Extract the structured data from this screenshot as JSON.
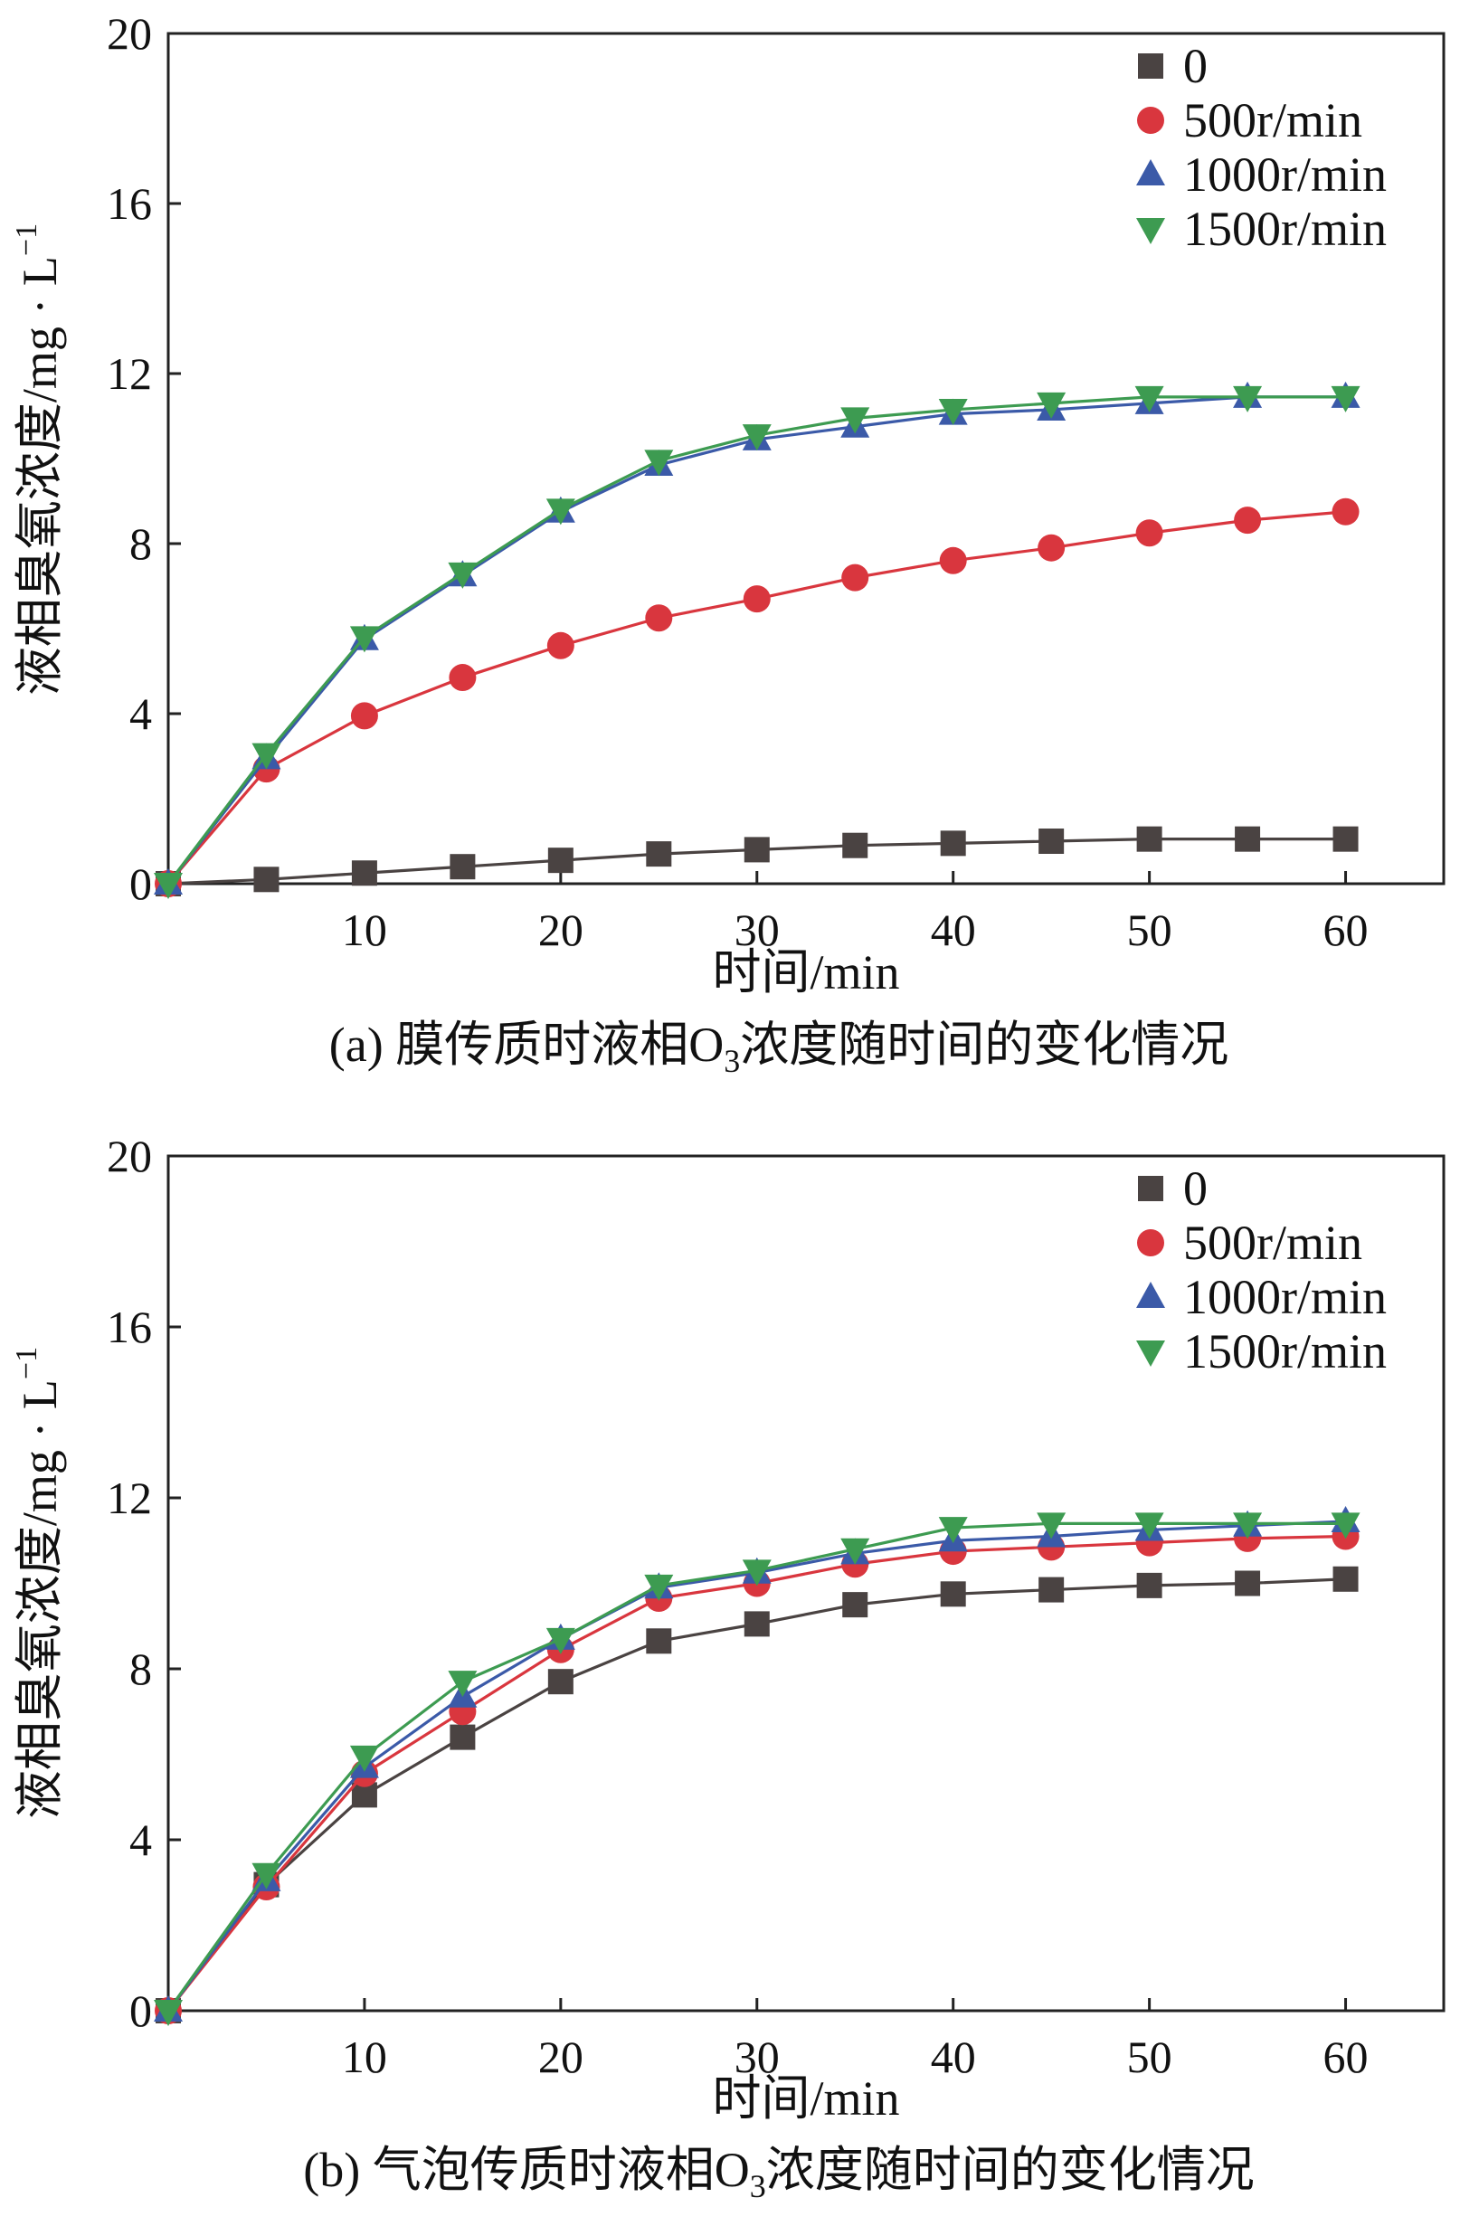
{
  "chart_data": [
    {
      "type": "line",
      "x": [
        0,
        5,
        10,
        15,
        20,
        25,
        30,
        35,
        40,
        45,
        50,
        55,
        60
      ],
      "xticks": [
        10,
        20,
        30,
        40,
        50,
        60
      ],
      "yticks": [
        0,
        4,
        8,
        12,
        16,
        20
      ],
      "xlim": [
        0,
        65
      ],
      "ylim": [
        0,
        20
      ],
      "xlabel": "时间/min",
      "ylabel_main": "液相臭氧浓度/mg · L",
      "ylabel_exp": "−1",
      "caption_prefix": "(a) 膜传质时液相O",
      "caption_sub": "3",
      "caption_suffix": "浓度随时间的变化情况",
      "legend_position": "top-right",
      "grid": false,
      "series": [
        {
          "name": "0",
          "marker": "square",
          "color": "#4a4342",
          "values": [
            0,
            0.1,
            0.25,
            0.4,
            0.55,
            0.7,
            0.8,
            0.9,
            0.95,
            1.0,
            1.05,
            1.05,
            1.05
          ]
        },
        {
          "name": "500r/min",
          "marker": "circle",
          "color": "#d9363e",
          "values": [
            0,
            2.7,
            3.95,
            4.85,
            5.6,
            6.25,
            6.7,
            7.2,
            7.6,
            7.9,
            8.25,
            8.55,
            8.75
          ]
        },
        {
          "name": "1000r/min",
          "marker": "triangle-up",
          "color": "#3b5aa8",
          "values": [
            0,
            2.95,
            5.75,
            7.25,
            8.75,
            9.85,
            10.45,
            10.75,
            11.05,
            11.15,
            11.3,
            11.45,
            11.45
          ]
        },
        {
          "name": "1500r/min",
          "marker": "triangle-down",
          "color": "#3d9b51",
          "values": [
            0,
            3.05,
            5.8,
            7.3,
            8.8,
            9.95,
            10.55,
            10.95,
            11.15,
            11.3,
            11.45,
            11.45,
            11.45
          ]
        }
      ]
    },
    {
      "type": "line",
      "x": [
        0,
        5,
        10,
        15,
        20,
        25,
        30,
        35,
        40,
        45,
        50,
        55,
        60
      ],
      "xticks": [
        10,
        20,
        30,
        40,
        50,
        60
      ],
      "yticks": [
        0,
        4,
        8,
        12,
        16,
        20
      ],
      "xlim": [
        0,
        65
      ],
      "ylim": [
        0,
        20
      ],
      "xlabel": "时间/min",
      "ylabel_main": "液相臭氧浓度/mg · L",
      "ylabel_exp": "−1",
      "caption_prefix": "(b) 气泡传质时液相O",
      "caption_sub": "3",
      "caption_suffix": "浓度随时间的变化情况",
      "legend_position": "top-right",
      "grid": false,
      "series": [
        {
          "name": "0",
          "marker": "square",
          "color": "#4a4342",
          "values": [
            0,
            2.95,
            5.05,
            6.4,
            7.7,
            8.65,
            9.05,
            9.5,
            9.75,
            9.85,
            9.95,
            10.0,
            10.1
          ]
        },
        {
          "name": "500r/min",
          "marker": "circle",
          "color": "#d9363e",
          "values": [
            0,
            2.9,
            5.55,
            7.0,
            8.45,
            9.65,
            10.0,
            10.45,
            10.75,
            10.85,
            10.95,
            11.05,
            11.1
          ]
        },
        {
          "name": "1000r/min",
          "marker": "triangle-up",
          "color": "#3b5aa8",
          "values": [
            0,
            3.05,
            5.7,
            7.35,
            8.7,
            9.9,
            10.25,
            10.7,
            11.0,
            11.1,
            11.25,
            11.35,
            11.45
          ]
        },
        {
          "name": "1500r/min",
          "marker": "triangle-down",
          "color": "#3d9b51",
          "values": [
            0,
            3.2,
            5.95,
            7.7,
            8.7,
            9.95,
            10.3,
            10.8,
            11.3,
            11.4,
            11.4,
            11.4,
            11.4
          ]
        }
      ]
    }
  ]
}
